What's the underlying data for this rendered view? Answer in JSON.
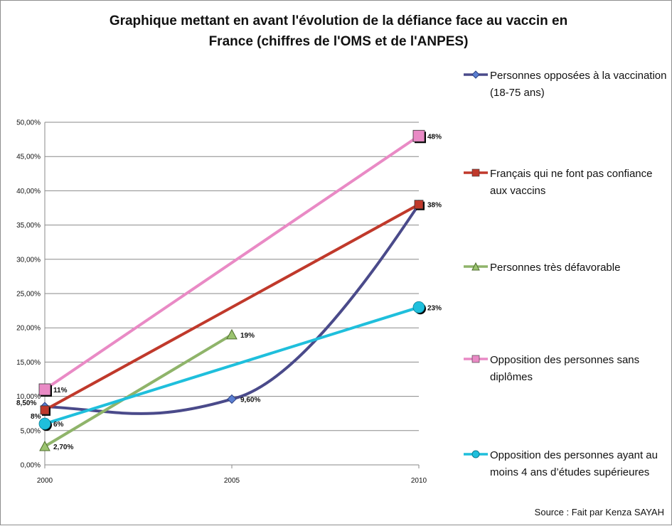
{
  "chart_data": {
    "type": "line",
    "title": "Graphique mettant en avant l'évolution de la défiance face au vaccin en France (chiffres de l'OMS et de l'ANPES)",
    "title_lines": [
      "Graphique mettant en avant l'évolution de la défiance face au vaccin en",
      "France (chiffres de l'OMS et de l'ANPES)"
    ],
    "x_ticks": [
      "2000",
      "2005",
      "2010"
    ],
    "y_ticks": [
      "0,00%",
      "5,00%",
      "10,00%",
      "15,00%",
      "20,00%",
      "25,00%",
      "30,00%",
      "35,00%",
      "40,00%",
      "45,00%",
      "50,00%"
    ],
    "ylim": [
      0,
      50
    ],
    "grid": true,
    "legend_position": "right",
    "series": [
      {
        "name": "Personnes opposées à la vaccination (18-75 ans)",
        "x": [
          2000,
          2005,
          2010
        ],
        "values": [
          8.5,
          9.6,
          38
        ],
        "labels": [
          "8,50%",
          "9,60%",
          ""
        ],
        "color": "#4a4a8a",
        "marker": "diamond",
        "smooth": true
      },
      {
        "name": "Français qui ne font pas confiance aux vaccins",
        "x": [
          2000,
          2010
        ],
        "values": [
          8,
          38
        ],
        "labels": [
          "8%",
          "38%"
        ],
        "color": "#c0392b",
        "marker": "square",
        "smooth": false
      },
      {
        "name": "Personnes très défavorable",
        "x": [
          2000,
          2005
        ],
        "values": [
          2.7,
          19
        ],
        "labels": [
          "2,70%",
          "19%"
        ],
        "color": "#8fb46a",
        "marker": "triangle",
        "smooth": false
      },
      {
        "name": "Opposition des personnes sans diplômes",
        "x": [
          2000,
          2010
        ],
        "values": [
          11,
          48
        ],
        "labels": [
          "11%",
          "48%"
        ],
        "color": "#e98ac5",
        "marker": "square",
        "smooth": false
      },
      {
        "name": "Opposition des personnes ayant au moins 4 ans d’études supérieures",
        "x": [
          2000,
          2010
        ],
        "values": [
          6,
          23
        ],
        "labels": [
          "6%",
          "23%"
        ],
        "color": "#1fbfdc",
        "marker": "circle",
        "smooth": false
      }
    ],
    "source": "Source : Fait par Kenza SAYAH"
  }
}
